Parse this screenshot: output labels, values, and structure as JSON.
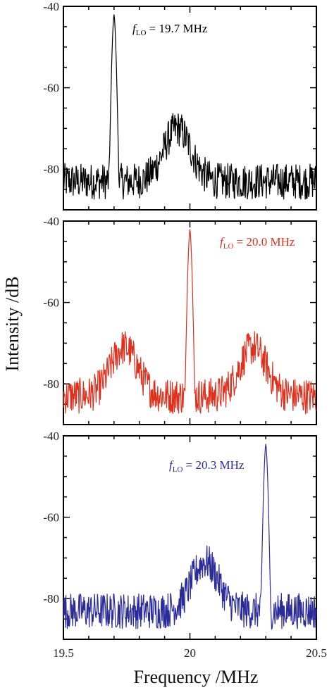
{
  "chart_data": {
    "type": "line",
    "ylabel": "Intensity /dB",
    "xlabel": "Frequency /MHz",
    "xlim": [
      19.5,
      20.5
    ],
    "ylim": [
      -90,
      -40
    ],
    "x_ticks": [
      "19.5",
      "20",
      "20.5"
    ],
    "y_ticks": [
      "-40",
      "-60",
      "-80"
    ],
    "panels": [
      {
        "color": "#000000",
        "annotation": {
          "f": "f",
          "sub": "LO",
          "rest": " = 19.7 MHz"
        },
        "peak": {
          "x": 19.7,
          "y": -42
        },
        "hump_centers": [
          19.95
        ],
        "hump_levels": [
          -70
        ],
        "noise_floor": -83
      },
      {
        "color": "#e0301e",
        "annotation": {
          "f": "f",
          "sub": "LO",
          "rest": " = 20.0 MHz"
        },
        "peak": {
          "x": 20.0,
          "y": -42
        },
        "hump_centers": [
          19.74,
          20.25
        ],
        "hump_levels": [
          -71,
          -71
        ],
        "noise_floor": -83
      },
      {
        "color": "#2b2b9a",
        "annotation": {
          "f": "f",
          "sub": "LO",
          "rest": " = 20.3 MHz"
        },
        "peak": {
          "x": 20.3,
          "y": -42
        },
        "hump_centers": [
          20.06
        ],
        "hump_levels": [
          -71
        ],
        "noise_floor": -83
      }
    ]
  }
}
